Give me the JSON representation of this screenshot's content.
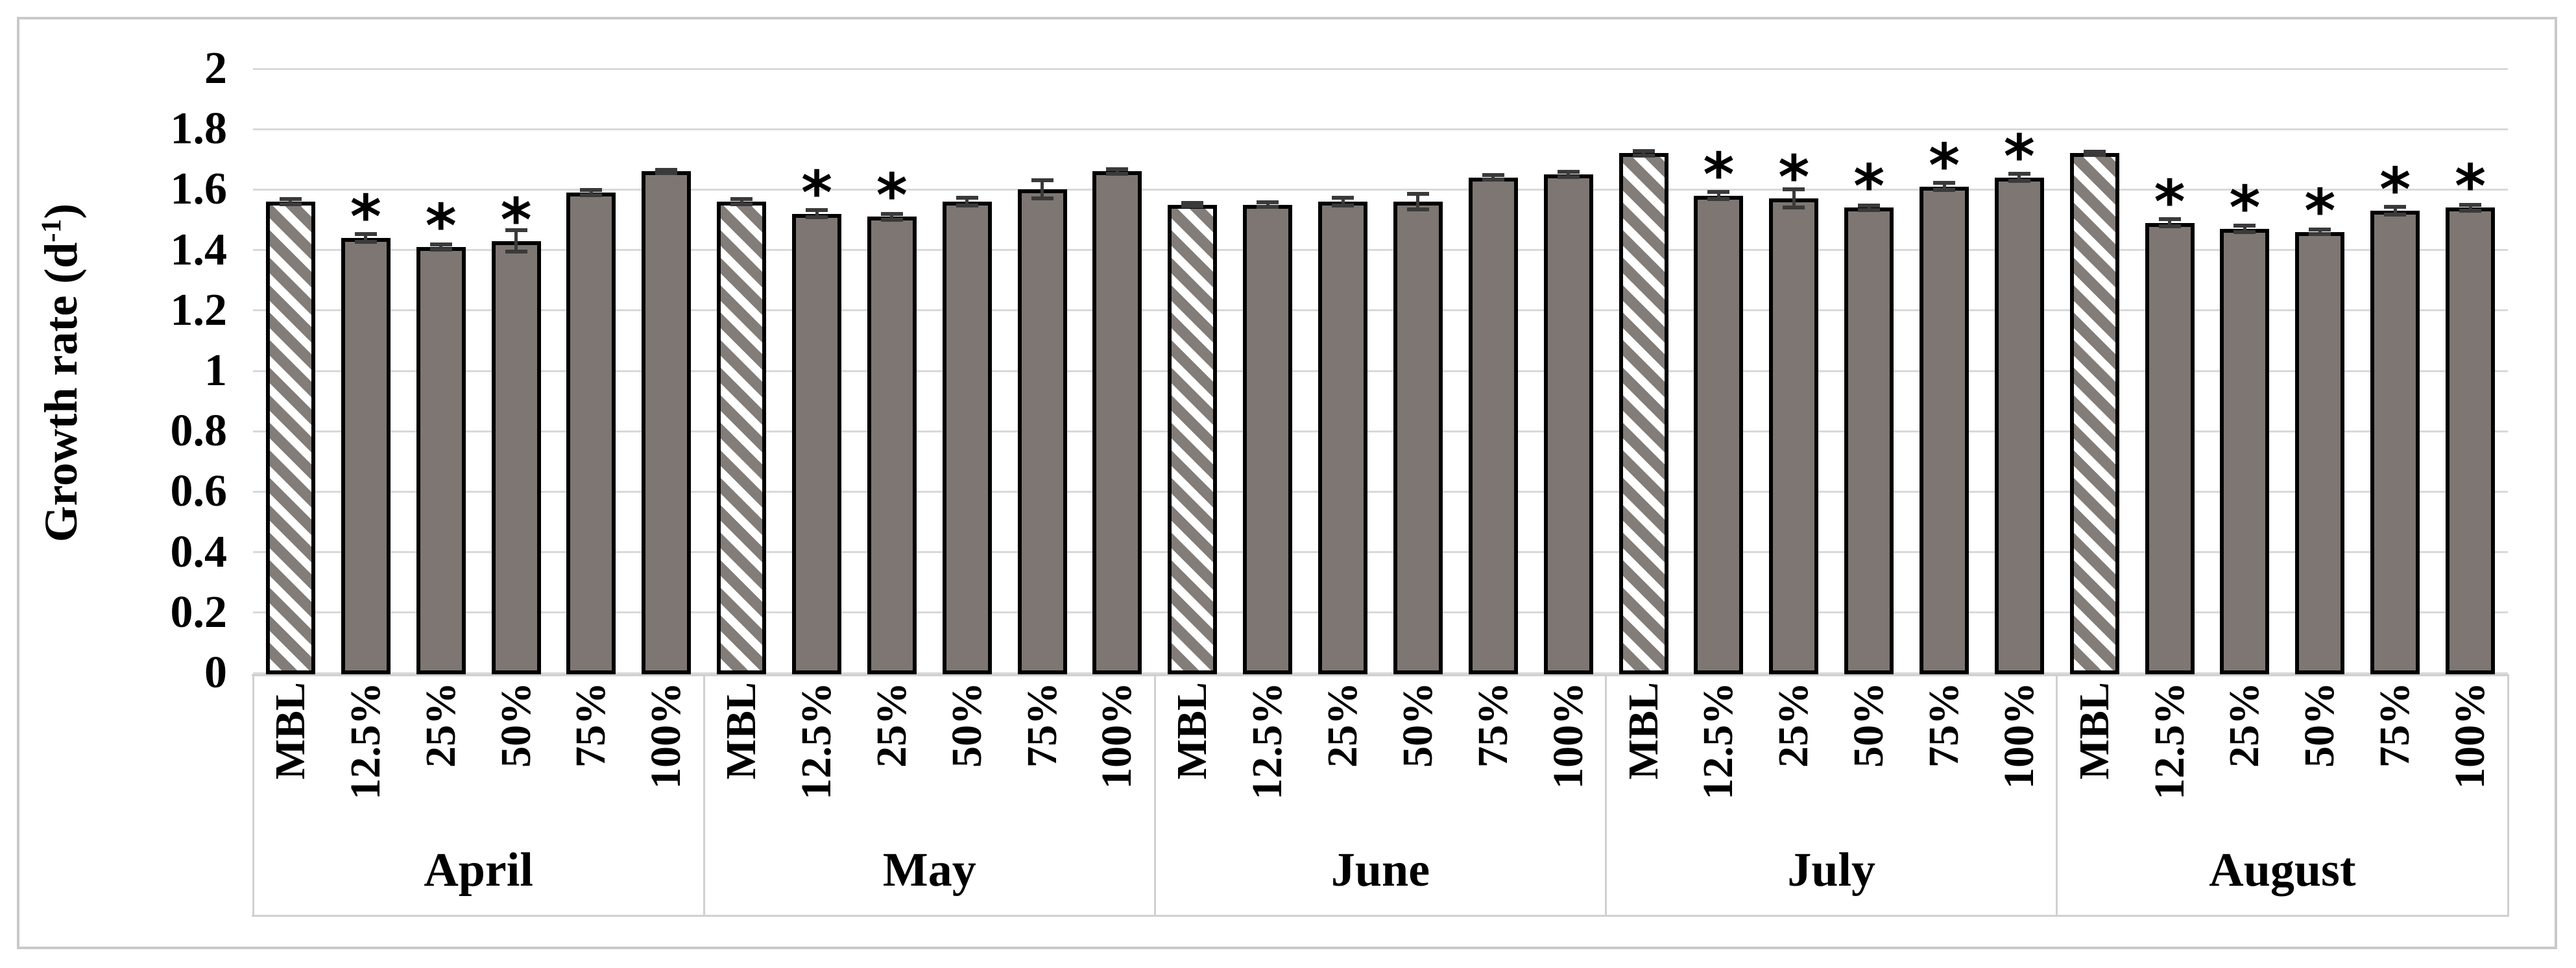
{
  "chart_data": {
    "type": "bar",
    "title": "",
    "ylabel": {
      "prefix": "Growth rate (d",
      "superscript": "-1",
      "suffix": ")"
    },
    "xlabel": "",
    "ylim": [
      0,
      2
    ],
    "ytick_step": 0.2,
    "y_ticks": [
      "2",
      "1.8",
      "1.6",
      "1.4",
      "1.2",
      "1",
      "0.8",
      "0.6",
      "0.4",
      "0.2",
      "0"
    ],
    "grid": true,
    "legend": "none",
    "significance_marker": "*",
    "categories": [
      "MBL",
      "12.5%",
      "25%",
      "50%",
      "75%",
      "100%"
    ],
    "groups": [
      {
        "month": "April",
        "bars": [
          {
            "label": "MBL",
            "value": 1.56,
            "error": 0.008,
            "significant": false,
            "hatched": true
          },
          {
            "label": "12.5%",
            "value": 1.44,
            "error": 0.012,
            "significant": true,
            "hatched": false
          },
          {
            "label": "25%",
            "value": 1.41,
            "error": 0.008,
            "significant": true,
            "hatched": false
          },
          {
            "label": "50%",
            "value": 1.43,
            "error": 0.035,
            "significant": true,
            "hatched": false
          },
          {
            "label": "75%",
            "value": 1.59,
            "error": 0.008,
            "significant": false,
            "hatched": false
          },
          {
            "label": "100%",
            "value": 1.66,
            "error": 0.006,
            "significant": false,
            "hatched": false
          }
        ]
      },
      {
        "month": "May",
        "bars": [
          {
            "label": "MBL",
            "value": 1.56,
            "error": 0.008,
            "significant": false,
            "hatched": true
          },
          {
            "label": "12.5%",
            "value": 1.52,
            "error": 0.012,
            "significant": true,
            "hatched": false
          },
          {
            "label": "25%",
            "value": 1.51,
            "error": 0.01,
            "significant": true,
            "hatched": false
          },
          {
            "label": "50%",
            "value": 1.56,
            "error": 0.012,
            "significant": false,
            "hatched": false
          },
          {
            "label": "75%",
            "value": 1.6,
            "error": 0.03,
            "significant": false,
            "hatched": false
          },
          {
            "label": "100%",
            "value": 1.66,
            "error": 0.008,
            "significant": false,
            "hatched": false
          }
        ]
      },
      {
        "month": "June",
        "bars": [
          {
            "label": "MBL",
            "value": 1.55,
            "error": 0.006,
            "significant": false,
            "hatched": true
          },
          {
            "label": "12.5%",
            "value": 1.55,
            "error": 0.008,
            "significant": false,
            "hatched": false
          },
          {
            "label": "25%",
            "value": 1.56,
            "error": 0.012,
            "significant": false,
            "hatched": false
          },
          {
            "label": "50%",
            "value": 1.56,
            "error": 0.025,
            "significant": false,
            "hatched": false
          },
          {
            "label": "75%",
            "value": 1.64,
            "error": 0.008,
            "significant": false,
            "hatched": false
          },
          {
            "label": "100%",
            "value": 1.65,
            "error": 0.008,
            "significant": false,
            "hatched": false
          }
        ]
      },
      {
        "month": "July",
        "bars": [
          {
            "label": "MBL",
            "value": 1.72,
            "error": 0.008,
            "significant": false,
            "hatched": true
          },
          {
            "label": "12.5%",
            "value": 1.58,
            "error": 0.012,
            "significant": true,
            "hatched": false
          },
          {
            "label": "25%",
            "value": 1.57,
            "error": 0.03,
            "significant": true,
            "hatched": false
          },
          {
            "label": "50%",
            "value": 1.54,
            "error": 0.008,
            "significant": true,
            "hatched": false
          },
          {
            "label": "75%",
            "value": 1.61,
            "error": 0.012,
            "significant": true,
            "hatched": false
          },
          {
            "label": "100%",
            "value": 1.64,
            "error": 0.012,
            "significant": true,
            "hatched": false
          }
        ]
      },
      {
        "month": "August",
        "bars": [
          {
            "label": "MBL",
            "value": 1.72,
            "error": 0.006,
            "significant": false,
            "hatched": true
          },
          {
            "label": "12.5%",
            "value": 1.49,
            "error": 0.012,
            "significant": true,
            "hatched": false
          },
          {
            "label": "25%",
            "value": 1.47,
            "error": 0.01,
            "significant": true,
            "hatched": false
          },
          {
            "label": "50%",
            "value": 1.46,
            "error": 0.008,
            "significant": true,
            "hatched": false
          },
          {
            "label": "75%",
            "value": 1.53,
            "error": 0.012,
            "significant": true,
            "hatched": false
          },
          {
            "label": "100%",
            "value": 1.54,
            "error": 0.01,
            "significant": true,
            "hatched": false
          }
        ]
      }
    ],
    "colors": {
      "bar_fill": "#7d7672",
      "bar_border": "#000000",
      "hatch_background": "#ffffff",
      "hatch_stripe": "#837d79",
      "gridline": "#d9d9d9",
      "axis_line": "#d0d0d0",
      "error_bar": "#3a3a3a",
      "frame_border": "#c9c9c9",
      "text": "#000000"
    }
  }
}
